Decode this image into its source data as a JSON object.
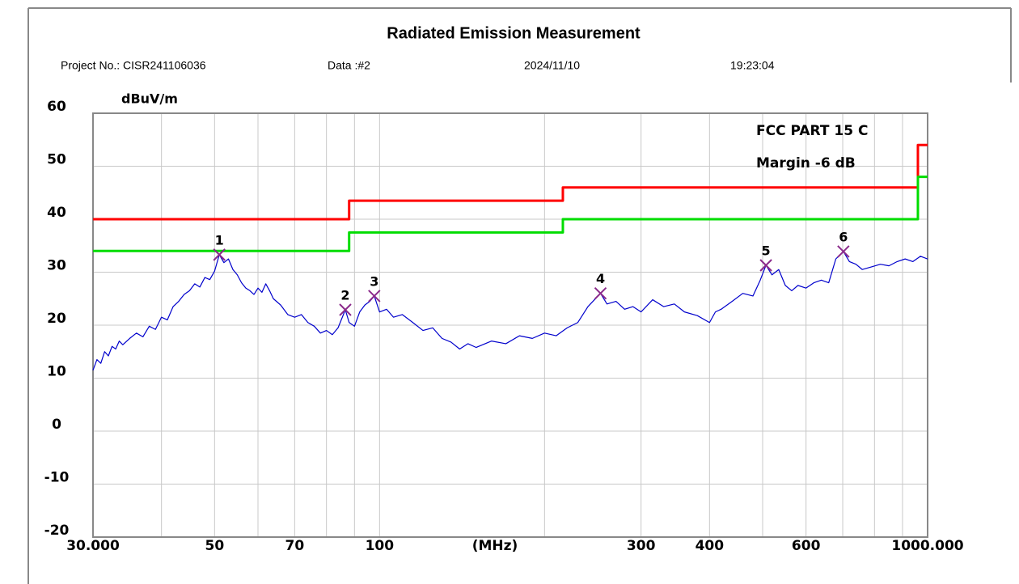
{
  "header": {
    "title": "Radiated Emission Measurement",
    "project": "Project No.: CISR241106036",
    "data_no": "Data :#2",
    "date": "2024/11/10",
    "time": "19:23:04"
  },
  "chart_data": {
    "type": "line",
    "y_label": "dBuV/m",
    "x_label": "(MHz)",
    "xscale": "log",
    "xlim": [
      30,
      1000
    ],
    "ylim": [
      -20,
      60
    ],
    "xticks": [
      {
        "value": 30,
        "label": "30.000"
      },
      50,
      70,
      100,
      300,
      400,
      600,
      {
        "value": 1000,
        "label": "1000.000"
      }
    ],
    "xgrid": [
      40,
      50,
      60,
      70,
      80,
      90,
      100,
      200,
      300,
      400,
      500,
      600,
      700,
      800,
      900
    ],
    "yticks": [
      -20,
      -10,
      0,
      10,
      20,
      30,
      40,
      50,
      60
    ],
    "grid": true,
    "legend": "upper right",
    "series": [
      {
        "name": "FCC PART 15 C",
        "color": "#ff0000",
        "x": [
          30,
          88,
          88,
          216,
          216,
          960,
          960,
          1000
        ],
        "values": [
          40,
          40,
          43.5,
          43.5,
          46,
          46,
          54,
          54
        ]
      },
      {
        "name": "Margin -6 dB",
        "color": "#00dd00",
        "x": [
          30,
          88,
          88,
          216,
          216,
          960,
          960,
          1000
        ],
        "values": [
          34,
          34,
          37.5,
          37.5,
          40,
          40,
          48,
          48
        ]
      },
      {
        "color": "#0000cc",
        "x": [
          30,
          30.5,
          31,
          31.5,
          32,
          32.5,
          33,
          33.5,
          34,
          35,
          36,
          37,
          38,
          39,
          40,
          41,
          42,
          43,
          44,
          45,
          46,
          47,
          48,
          49,
          50,
          51,
          52,
          53,
          54,
          55,
          56,
          57,
          58,
          59,
          60,
          61,
          62,
          63,
          64,
          66,
          68,
          70,
          72,
          74,
          76,
          78,
          80,
          82,
          84,
          86.6,
          88,
          90,
          92,
          94,
          96,
          97.8,
          100,
          103,
          106,
          110,
          115,
          120,
          125,
          130,
          135,
          140,
          145,
          150,
          160,
          170,
          180,
          190,
          200,
          210,
          220,
          230,
          240,
          253,
          260,
          270,
          280,
          290,
          300,
          315,
          330,
          345,
          360,
          380,
          400,
          410,
          420,
          440,
          460,
          480,
          495,
          507,
          520,
          535,
          550,
          565,
          580,
          600,
          620,
          640,
          660,
          680,
          702,
          720,
          740,
          760,
          790,
          820,
          850,
          880,
          910,
          940,
          970,
          1000
        ],
        "values": [
          11.5,
          13.5,
          12.8,
          15,
          14.2,
          16,
          15.5,
          17,
          16.3,
          17.5,
          18.5,
          17.8,
          19.8,
          19.2,
          21.5,
          21,
          23.5,
          24.5,
          25.8,
          26.5,
          27.8,
          27.2,
          29,
          28.6,
          30.2,
          33.3,
          31.8,
          32.5,
          30.5,
          29.5,
          28,
          27,
          26.5,
          25.8,
          27,
          26.2,
          27.8,
          26.5,
          25,
          23.8,
          22,
          21.5,
          22,
          20.5,
          19.8,
          18.5,
          19,
          18.2,
          19.5,
          22.9,
          20.5,
          19.8,
          22.5,
          23.8,
          24.5,
          25.5,
          22.5,
          23,
          21.5,
          22,
          20.5,
          19,
          19.5,
          17.5,
          16.8,
          15.5,
          16.5,
          15.8,
          17,
          16.5,
          18,
          17.5,
          18.5,
          18,
          19.5,
          20.5,
          23.5,
          26,
          24,
          24.5,
          23,
          23.5,
          22.5,
          24.8,
          23.5,
          24,
          22.5,
          21.8,
          20.5,
          22.5,
          23,
          24.5,
          26,
          25.5,
          28.5,
          31.3,
          29.5,
          30.5,
          27.5,
          26.5,
          27.5,
          27,
          28,
          28.5,
          28,
          32.5,
          33.9,
          32,
          31.5,
          30.5,
          31,
          31.5,
          31.2,
          32,
          32.5,
          32,
          33,
          32.5
        ]
      }
    ],
    "markers": {
      "color": "#8b2a8b",
      "x": [
        51,
        86.6,
        97.8,
        253,
        507,
        702
      ],
      "values": [
        33.3,
        22.9,
        25.5,
        26,
        31.3,
        33.9
      ],
      "labels": [
        "1",
        "2",
        "3",
        "4",
        "5",
        "6"
      ]
    }
  }
}
